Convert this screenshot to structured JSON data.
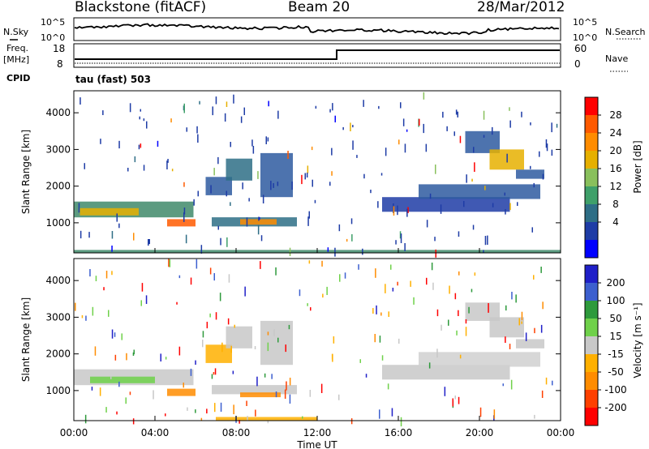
{
  "header": {
    "station": "Blackstone (fitACF)",
    "beam": "Beam 20",
    "date": "28/Mar/2012"
  },
  "noise_panel": {
    "left_label": "N.Sky",
    "left_ticks": [
      "10^5",
      "10^0"
    ],
    "right_ticks": [
      "10^5",
      "10^0"
    ],
    "right_label": "N.Search"
  },
  "freq_panel": {
    "left_label_1": "Freq.",
    "left_label_2": "[MHz]",
    "left_ticks": [
      "18",
      "8"
    ],
    "right_ticks": [
      "60",
      "0"
    ],
    "right_label": "Nave",
    "cpid_label": "CPID",
    "cpid_value": "tau (fast) 503"
  },
  "chart_data": [
    {
      "type": "heatmap",
      "name_text": "Power",
      "ylabel": "Slant Range [km]",
      "ylim": [
        180,
        4600
      ],
      "xlim": [
        0,
        24
      ],
      "yticks": [
        "4000",
        "3000",
        "2000",
        "1000"
      ],
      "colorbar": {
        "label": "Power [dB]",
        "ticks": [
          "28",
          "24",
          "20",
          "16",
          "12",
          "8",
          "4"
        ],
        "colors": [
          "#0000ff",
          "#1e3ca6",
          "#2e6e86",
          "#3fa06a",
          "#89c05c",
          "#e6b000",
          "#ff8c00",
          "#ff5a00",
          "#ff0000"
        ]
      },
      "bands": [
        {
          "x0": 0.0,
          "x1": 5.9,
          "y0": 1150,
          "y1": 1580,
          "color": "#3f8a6a"
        },
        {
          "x0": 0.3,
          "x1": 3.2,
          "y0": 1200,
          "y1": 1400,
          "color": "#e6b000"
        },
        {
          "x0": 4.6,
          "x1": 6.0,
          "y0": 900,
          "y1": 1100,
          "color": "#ff5a00"
        },
        {
          "x0": 6.5,
          "x1": 7.8,
          "y0": 1750,
          "y1": 2250,
          "color": "#2e5aa0"
        },
        {
          "x0": 7.5,
          "x1": 8.8,
          "y0": 2150,
          "y1": 2750,
          "color": "#2e6e86"
        },
        {
          "x0": 6.8,
          "x1": 11.0,
          "y0": 900,
          "y1": 1150,
          "color": "#2e6e86"
        },
        {
          "x0": 8.2,
          "x1": 10.0,
          "y0": 950,
          "y1": 1100,
          "color": "#ff8c00"
        },
        {
          "x0": 9.2,
          "x1": 10.8,
          "y0": 1700,
          "y1": 2900,
          "color": "#2e5aa0"
        },
        {
          "x0": 15.2,
          "x1": 21.5,
          "y0": 1300,
          "y1": 1700,
          "color": "#1e3ca6"
        },
        {
          "x0": 17.0,
          "x1": 23.0,
          "y0": 1650,
          "y1": 2050,
          "color": "#2e5aa0"
        },
        {
          "x0": 19.3,
          "x1": 21.0,
          "y0": 2900,
          "y1": 3500,
          "color": "#2e5aa0"
        },
        {
          "x0": 20.5,
          "x1": 22.2,
          "y0": 2450,
          "y1": 3000,
          "color": "#e6b000"
        },
        {
          "x0": 21.8,
          "x1": 23.2,
          "y0": 2200,
          "y1": 2450,
          "color": "#2e5aa0"
        },
        {
          "x0": 0.0,
          "x1": 24.0,
          "y0": 180,
          "y1": 260,
          "color": "#3f8a6a"
        }
      ]
    },
    {
      "type": "heatmap",
      "name_text": "Velocity",
      "ylabel": "Slant Range [km]",
      "ylim": [
        180,
        4600
      ],
      "xlim": [
        0,
        24
      ],
      "yticks": [
        "4000",
        "3000",
        "2000",
        "1000"
      ],
      "colorbar": {
        "label": "Velocity [m s⁻¹]",
        "ticks": [
          "200",
          "100",
          "50",
          "15",
          "-15",
          "-50",
          "-100",
          "-200"
        ],
        "colors": [
          "#ff0000",
          "#ff4000",
          "#ff8c00",
          "#ffb000",
          "#c8c8c8",
          "#6fd14a",
          "#2e9a3c",
          "#3c5fcf",
          "#1f1fc8"
        ]
      },
      "bands": [
        {
          "x0": 0.0,
          "x1": 5.9,
          "y0": 1150,
          "y1": 1580,
          "color": "#c8c8c8"
        },
        {
          "x0": 0.8,
          "x1": 4.0,
          "y0": 1200,
          "y1": 1380,
          "color": "#6fd14a"
        },
        {
          "x0": 4.6,
          "x1": 6.0,
          "y0": 850,
          "y1": 1050,
          "color": "#ff8c00"
        },
        {
          "x0": 6.5,
          "x1": 7.8,
          "y0": 1750,
          "y1": 2250,
          "color": "#ffb000"
        },
        {
          "x0": 7.5,
          "x1": 8.8,
          "y0": 2150,
          "y1": 2750,
          "color": "#c8c8c8"
        },
        {
          "x0": 6.8,
          "x1": 11.0,
          "y0": 900,
          "y1": 1150,
          "color": "#c8c8c8"
        },
        {
          "x0": 8.2,
          "x1": 10.2,
          "y0": 820,
          "y1": 950,
          "color": "#ff8c00"
        },
        {
          "x0": 9.2,
          "x1": 10.8,
          "y0": 1700,
          "y1": 2900,
          "color": "#c8c8c8"
        },
        {
          "x0": 15.2,
          "x1": 21.5,
          "y0": 1300,
          "y1": 1700,
          "color": "#c8c8c8"
        },
        {
          "x0": 17.0,
          "x1": 23.0,
          "y0": 1650,
          "y1": 2050,
          "color": "#d0d0d0"
        },
        {
          "x0": 19.3,
          "x1": 21.0,
          "y0": 2900,
          "y1": 3400,
          "color": "#c8c8c8"
        },
        {
          "x0": 20.5,
          "x1": 22.2,
          "y0": 2450,
          "y1": 3000,
          "color": "#c8c8c8"
        },
        {
          "x0": 21.8,
          "x1": 23.2,
          "y0": 2150,
          "y1": 2400,
          "color": "#c8c8c8"
        },
        {
          "x0": 7.0,
          "x1": 12.0,
          "y0": 180,
          "y1": 280,
          "color": "#ffb000"
        }
      ]
    }
  ],
  "x_axis": {
    "label": "Time UT",
    "ticks": [
      "00:00",
      "04:00",
      "08:00",
      "12:00",
      "16:00",
      "20:00",
      "00:00"
    ]
  },
  "colors": {
    "frame": "#000000",
    "panel_bg": "#ffffff",
    "noise_line": "#000000"
  }
}
